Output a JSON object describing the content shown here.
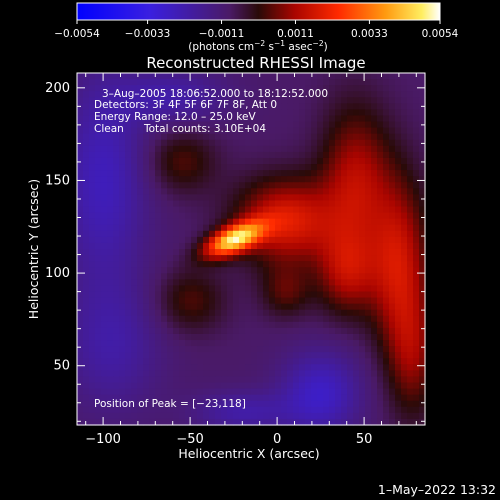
{
  "chart_data": {
    "type": "heatmap",
    "title": "Reconstructed RHESSI Image",
    "xlabel": "Heliocentric X (arcsec)",
    "ylabel": "Heliocentric Y (arcsec)",
    "xlim": [
      -115,
      85
    ],
    "ylim": [
      18,
      208
    ],
    "x_ticks": [
      -100,
      -50,
      0,
      50
    ],
    "x_tick_labels": [
      "−100",
      "−50",
      "0",
      "50"
    ],
    "y_ticks": [
      50,
      100,
      150,
      200
    ],
    "y_tick_labels": [
      "50",
      "100",
      "150",
      "200"
    ],
    "colorbar": {
      "range": [
        -0.0054,
        0.0054
      ],
      "ticks": [
        -0.0054,
        -0.0033,
        -0.0011,
        0.0011,
        0.0033,
        0.0054
      ],
      "tick_labels": [
        "−0.0054",
        "−0.0033",
        "−0.0011",
        "0.0011",
        "0.0033",
        "0.0054"
      ],
      "unit_main": "(photons cm",
      "unit_exp1": "−2",
      "unit_mid": " s",
      "unit_exp2": "−1",
      "unit_mid2": " asec",
      "unit_exp3": "−2",
      "unit_end": ")"
    },
    "annotations": {
      "time": "3–Aug–2005 18:06:52.000 to 18:12:52.000",
      "detectors": "Detectors: 3F 4F 5F 6F 7F 8F, Att 0",
      "energy": "Energy Range: 12.0 – 25.0 keV",
      "clean": "Clean",
      "counts": "Total counts: 3.10E+04",
      "peak": "Position of Peak = [−23,118]"
    },
    "peak_position": [
      -23,
      118
    ],
    "sources": [
      {
        "x": -25,
        "y": 118,
        "amp": 0.0054,
        "sx": 12,
        "sy": 5,
        "angle_deg": 22
      },
      {
        "x": 5,
        "y": 128,
        "amp": 0.0028,
        "sx": 20,
        "sy": 16,
        "angle_deg": 0
      },
      {
        "x": 45,
        "y": 150,
        "amp": 0.0021,
        "sx": 14,
        "sy": 28,
        "angle_deg": 0
      },
      {
        "x": 70,
        "y": 105,
        "amp": 0.0024,
        "sx": 12,
        "sy": 32,
        "angle_deg": 0
      },
      {
        "x": 40,
        "y": 100,
        "amp": 0.0019,
        "sx": 12,
        "sy": 16,
        "angle_deg": 0
      },
      {
        "x": 78,
        "y": 55,
        "amp": 0.0015,
        "sx": 10,
        "sy": 24,
        "angle_deg": 0
      },
      {
        "x": -55,
        "y": 160,
        "amp": 0.0012,
        "sx": 14,
        "sy": 12,
        "angle_deg": 0
      },
      {
        "x": -50,
        "y": 85,
        "amp": 0.0012,
        "sx": 14,
        "sy": 12,
        "angle_deg": 0
      },
      {
        "x": 5,
        "y": 90,
        "amp": 0.0012,
        "sx": 10,
        "sy": 10,
        "angle_deg": 0
      },
      {
        "x": -100,
        "y": 150,
        "amp": -0.0016,
        "sx": 18,
        "sy": 40,
        "angle_deg": 0
      },
      {
        "x": -60,
        "y": 195,
        "amp": -0.0012,
        "sx": 22,
        "sy": 10,
        "angle_deg": 0
      },
      {
        "x": -95,
        "y": 60,
        "amp": -0.0011,
        "sx": 20,
        "sy": 25,
        "angle_deg": 0
      },
      {
        "x": 25,
        "y": 35,
        "amp": -0.0018,
        "sx": 16,
        "sy": 16,
        "angle_deg": 0
      },
      {
        "x": -20,
        "y": 25,
        "amp": -0.0012,
        "sx": 20,
        "sy": 8,
        "angle_deg": 0
      }
    ],
    "background_value": -0.0009,
    "grid": false
  },
  "timestamp": "1–May–2022 13:32"
}
